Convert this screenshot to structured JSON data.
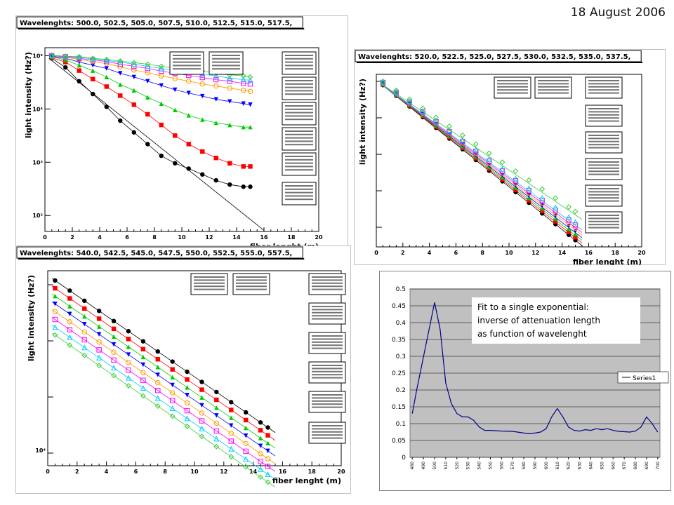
{
  "page": {
    "date": "18 August 2006"
  },
  "chart_data": [
    {
      "type": "scatter",
      "title": "Wavelenghts: 500.0, 502.5, 505.0, 507.5, 510.0, 512.5, 515.0, 517.5,",
      "xlabel": "fiber lenght (m)",
      "ylabel": "light intensity (Hz?)",
      "x_ticks": [
        "0",
        "2",
        "4",
        "6",
        "8",
        "10",
        "12",
        "14",
        "16",
        "18",
        "20"
      ],
      "y_ticks": [
        "10⁵",
        "10⁴",
        "10³",
        "10²"
      ],
      "log_y": true,
      "colors": [
        "#000000",
        "#ff0000",
        "#00cc00",
        "#0000ff",
        "#ff9900",
        "#ff00ff",
        "#00ccff",
        "#33cc33"
      ],
      "x": [
        0.5,
        1.5,
        2.5,
        3.5,
        4.5,
        5.5,
        6.5,
        7.5,
        8.5,
        9.5,
        10.5,
        11.5,
        12.5,
        13.5,
        14.5,
        15.0
      ],
      "series": [
        {
          "log10_values": [
            4.95,
            4.78,
            4.52,
            4.28,
            4.04,
            3.78,
            3.56,
            3.34,
            3.12,
            2.98,
            2.88,
            2.77,
            2.66,
            2.58,
            2.54,
            2.54
          ]
        },
        {
          "log10_values": [
            4.96,
            4.88,
            4.72,
            4.56,
            4.42,
            4.25,
            4.08,
            3.9,
            3.7,
            3.5,
            3.34,
            3.2,
            3.08,
            2.98,
            2.92,
            2.92
          ]
        },
        {
          "log10_values": [
            4.98,
            4.92,
            4.82,
            4.72,
            4.6,
            4.46,
            4.35,
            4.22,
            4.1,
            3.98,
            3.88,
            3.8,
            3.74,
            3.7,
            3.66,
            3.66
          ]
        },
        {
          "log10_values": [
            4.99,
            4.95,
            4.88,
            4.82,
            4.76,
            4.67,
            4.6,
            4.52,
            4.44,
            4.36,
            4.3,
            4.24,
            4.18,
            4.14,
            4.1,
            4.08
          ]
        },
        {
          "log10_values": [
            5.0,
            4.97,
            4.93,
            4.89,
            4.85,
            4.79,
            4.73,
            4.68,
            4.62,
            4.57,
            4.52,
            4.47,
            4.43,
            4.39,
            4.35,
            4.33
          ]
        },
        {
          "log10_values": [
            5.0,
            4.98,
            4.95,
            4.92,
            4.89,
            4.84,
            4.8,
            4.76,
            4.71,
            4.67,
            4.63,
            4.59,
            4.55,
            4.52,
            4.48,
            4.47
          ]
        },
        {
          "log10_values": [
            5.0,
            4.99,
            4.97,
            4.94,
            4.91,
            4.88,
            4.84,
            4.8,
            4.76,
            4.72,
            4.69,
            4.65,
            4.62,
            4.58,
            4.55,
            4.54
          ]
        },
        {
          "log10_values": [
            5.01,
            4.99,
            4.98,
            4.95,
            4.93,
            4.9,
            4.87,
            4.84,
            4.8,
            4.77,
            4.74,
            4.71,
            4.67,
            4.64,
            4.62,
            4.6
          ]
        }
      ]
    },
    {
      "type": "scatter",
      "title": "Wavelenghts: 520.0, 522.5, 525.0, 527.5, 530.0, 532.5, 535.0, 537.5,",
      "xlabel": "fiber lenght (m)",
      "ylabel": "light intensity (Hz?)",
      "x_ticks": [
        "0",
        "2",
        "4",
        "6",
        "8",
        "10",
        "12",
        "14",
        "16",
        "18",
        "20"
      ],
      "y_ticks": [],
      "colors": [
        "#000000",
        "#ff0000",
        "#00cc00",
        "#0000ff",
        "#ff9900",
        "#ff00ff",
        "#00ccff",
        "#33cc33"
      ],
      "x": [
        0.5,
        1.5,
        2.5,
        3.5,
        4.5,
        5.5,
        6.5,
        7.5,
        8.5,
        9.5,
        10.5,
        11.5,
        12.5,
        13.5,
        14.5,
        15.0
      ],
      "series_start": 0.95,
      "series_slopes": [
        -0.062,
        -0.061,
        -0.06,
        -0.059,
        -0.058,
        -0.057,
        -0.056,
        -0.052
      ]
    },
    {
      "type": "scatter",
      "title": "Wavelenghts: 540.0, 542.5, 545.0, 547.5, 550.0, 552.5, 555.0, 557.5,",
      "xlabel": "fiber lenght (m)",
      "ylabel": "light intensity (Hz?)",
      "x_ticks": [
        "0",
        "2",
        "4",
        "6",
        "8",
        "10",
        "12",
        "14",
        "16",
        "18",
        "20"
      ],
      "y_ticks": [
        "10⁴"
      ],
      "colors": [
        "#000000",
        "#ff0000",
        "#00cc00",
        "#0000ff",
        "#ff9900",
        "#ff00ff",
        "#00ccff",
        "#33cc33"
      ],
      "x": [
        0.5,
        1.5,
        2.5,
        3.5,
        4.5,
        5.5,
        6.5,
        7.5,
        8.5,
        9.5,
        10.5,
        11.5,
        12.5,
        13.5,
        14.5,
        15.0
      ],
      "series_offsets": [
        0.95,
        0.91,
        0.87,
        0.83,
        0.79,
        0.75,
        0.71,
        0.67
      ],
      "series_slope": -0.052
    },
    {
      "type": "line",
      "title": "",
      "xlabel": "",
      "ylabel": "",
      "ylim": [
        0,
        0.5
      ],
      "y_ticks": [
        "0",
        "0.05",
        "0.1",
        "0.15",
        "0.2",
        "0.25",
        "0.3",
        "0.35",
        "0.4",
        "0.45",
        "0.5"
      ],
      "categories": [
        "480",
        "490",
        "500",
        "510",
        "520",
        "530",
        "540",
        "550",
        "560",
        "570",
        "580",
        "590",
        "600",
        "610",
        "620",
        "630",
        "640",
        "650",
        "660",
        "670",
        "680",
        "690",
        "700"
      ],
      "series": [
        {
          "name": "Series1",
          "x": [
            480,
            484,
            500,
            505,
            510,
            515,
            520,
            525,
            530,
            535,
            540,
            545,
            550,
            560,
            570,
            580,
            585,
            590,
            595,
            600,
            605,
            610,
            615,
            620,
            625,
            630,
            635,
            640,
            645,
            650,
            655,
            660,
            665,
            670,
            675,
            680,
            685,
            690,
            695,
            700
          ],
          "values": [
            0.13,
            0.2,
            0.46,
            0.38,
            0.22,
            0.16,
            0.13,
            0.12,
            0.12,
            0.11,
            0.09,
            0.08,
            0.08,
            0.078,
            0.077,
            0.072,
            0.07,
            0.072,
            0.075,
            0.085,
            0.12,
            0.145,
            0.12,
            0.09,
            0.08,
            0.078,
            0.082,
            0.08,
            0.085,
            0.082,
            0.085,
            0.08,
            0.077,
            0.076,
            0.075,
            0.078,
            0.09,
            0.12,
            0.1,
            0.075
          ]
        }
      ],
      "legend": "Series1",
      "legend_position": "right",
      "annotation": "Fit to a single exponential: inverse of attenuation length as function of wavelenght",
      "plot_background": "#c0c0c0",
      "line_color": "#00008b"
    }
  ]
}
